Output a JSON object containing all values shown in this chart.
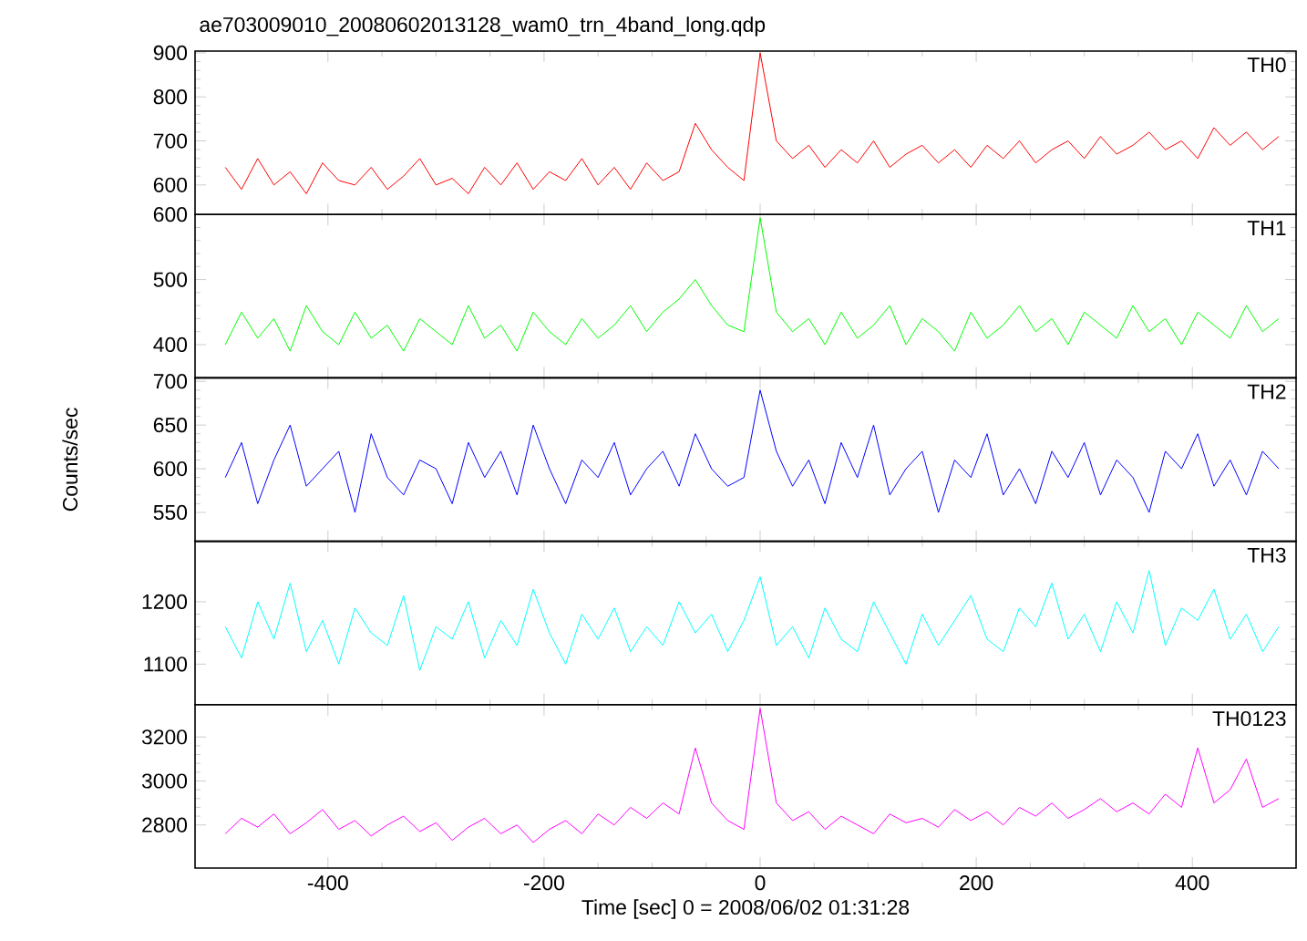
{
  "chart_data": [
    {
      "type": "line",
      "title": "ae703009010_20080602013128_wam0_trn_4band_long.qdp",
      "tick_labels": "y",
      "x": [
        -495,
        -480,
        -465,
        -450,
        -435,
        -420,
        -405,
        -390,
        -375,
        -360,
        -345,
        -330,
        -315,
        -300,
        -285,
        -270,
        -255,
        -240,
        -225,
        -210,
        -195,
        -180,
        -165,
        -150,
        -135,
        -120,
        -105,
        -90,
        -75,
        -60,
        -45,
        -30,
        -15,
        0,
        15,
        30,
        45,
        60,
        75,
        90,
        105,
        120,
        135,
        150,
        165,
        180,
        195,
        210,
        225,
        240,
        255,
        270,
        285,
        300,
        315,
        330,
        345,
        360,
        375,
        390,
        405,
        420,
        435,
        450,
        465,
        480
      ],
      "xlim": [
        -523,
        496
      ],
      "xticks": [
        -400,
        -200,
        0,
        200,
        400
      ],
      "ylim": [
        533,
        904
      ],
      "yticks": [
        600,
        700,
        800,
        900
      ],
      "series": [
        {
          "name": "TH0",
          "color": "#ff0000",
          "values": [
            640,
            590,
            660,
            600,
            630,
            580,
            650,
            610,
            600,
            640,
            590,
            620,
            660,
            600,
            615,
            580,
            640,
            600,
            650,
            590,
            630,
            610,
            660,
            600,
            640,
            590,
            650,
            610,
            630,
            740,
            680,
            640,
            610,
            900,
            700,
            660,
            690,
            640,
            680,
            650,
            700,
            640,
            670,
            690,
            650,
            680,
            640,
            690,
            660,
            700,
            650,
            680,
            700,
            660,
            710,
            670,
            690,
            720,
            680,
            700,
            660,
            730,
            690,
            720,
            680,
            710
          ]
        }
      ]
    },
    {
      "type": "line",
      "tick_labels": "y",
      "x": [
        -495,
        -480,
        -465,
        -450,
        -435,
        -420,
        -405,
        -390,
        -375,
        -360,
        -345,
        -330,
        -315,
        -300,
        -285,
        -270,
        -255,
        -240,
        -225,
        -210,
        -195,
        -180,
        -165,
        -150,
        -135,
        -120,
        -105,
        -90,
        -75,
        -60,
        -45,
        -30,
        -15,
        0,
        15,
        30,
        45,
        60,
        75,
        90,
        105,
        120,
        135,
        150,
        165,
        180,
        195,
        210,
        225,
        240,
        255,
        270,
        285,
        300,
        315,
        330,
        345,
        360,
        375,
        390,
        405,
        420,
        435,
        450,
        465,
        480
      ],
      "xlim": [
        -523,
        496
      ],
      "xticks": [
        -400,
        -200,
        0,
        200,
        400
      ],
      "ylim": [
        349,
        600
      ],
      "yticks": [
        400,
        500,
        600
      ],
      "series": [
        {
          "name": "TH1",
          "color": "#00ff00",
          "values": [
            400,
            450,
            410,
            440,
            390,
            460,
            420,
            400,
            450,
            410,
            430,
            390,
            440,
            420,
            400,
            460,
            410,
            430,
            390,
            450,
            420,
            400,
            440,
            410,
            430,
            460,
            420,
            450,
            470,
            500,
            460,
            430,
            420,
            595,
            450,
            420,
            440,
            400,
            450,
            410,
            430,
            460,
            400,
            440,
            420,
            390,
            450,
            410,
            430,
            460,
            420,
            440,
            400,
            450,
            430,
            410,
            460,
            420,
            440,
            400,
            450,
            430,
            410,
            460,
            420,
            440
          ]
        }
      ]
    },
    {
      "type": "line",
      "tick_labels": "y",
      "ylabel": "Counts/sec",
      "x": [
        -495,
        -480,
        -465,
        -450,
        -435,
        -420,
        -405,
        -390,
        -375,
        -360,
        -345,
        -330,
        -315,
        -300,
        -285,
        -270,
        -255,
        -240,
        -225,
        -210,
        -195,
        -180,
        -165,
        -150,
        -135,
        -120,
        -105,
        -90,
        -75,
        -60,
        -45,
        -30,
        -15,
        0,
        15,
        30,
        45,
        60,
        75,
        90,
        105,
        120,
        135,
        150,
        165,
        180,
        195,
        210,
        225,
        240,
        255,
        270,
        285,
        300,
        315,
        330,
        345,
        360,
        375,
        390,
        405,
        420,
        435,
        450,
        465,
        480
      ],
      "xlim": [
        -523,
        496
      ],
      "xticks": [
        -400,
        -200,
        0,
        200,
        400
      ],
      "ylim": [
        517,
        704
      ],
      "yticks": [
        550,
        600,
        650,
        700
      ],
      "series": [
        {
          "name": "TH2",
          "color": "#0000ff",
          "values": [
            590,
            630,
            560,
            610,
            650,
            580,
            600,
            620,
            550,
            640,
            590,
            570,
            610,
            600,
            560,
            630,
            590,
            620,
            570,
            650,
            600,
            560,
            610,
            590,
            630,
            570,
            600,
            620,
            580,
            640,
            600,
            580,
            590,
            690,
            620,
            580,
            610,
            560,
            630,
            590,
            650,
            570,
            600,
            620,
            550,
            610,
            590,
            640,
            570,
            600,
            560,
            620,
            590,
            630,
            570,
            610,
            590,
            550,
            620,
            600,
            640,
            580,
            610,
            570,
            620,
            600
          ]
        }
      ]
    },
    {
      "type": "line",
      "tick_labels": "y",
      "x": [
        -495,
        -480,
        -465,
        -450,
        -435,
        -420,
        -405,
        -390,
        -375,
        -360,
        -345,
        -330,
        -315,
        -300,
        -285,
        -270,
        -255,
        -240,
        -225,
        -210,
        -195,
        -180,
        -165,
        -150,
        -135,
        -120,
        -105,
        -90,
        -75,
        -60,
        -45,
        -30,
        -15,
        0,
        15,
        30,
        45,
        60,
        75,
        90,
        105,
        120,
        135,
        150,
        165,
        180,
        195,
        210,
        225,
        240,
        255,
        270,
        285,
        300,
        315,
        330,
        345,
        360,
        375,
        390,
        405,
        420,
        435,
        450,
        465,
        480
      ],
      "xlim": [
        -523,
        496
      ],
      "xticks": [
        -400,
        -200,
        0,
        200,
        400
      ],
      "ylim": [
        1035,
        1297
      ],
      "yticks": [
        1100,
        1200
      ],
      "series": [
        {
          "name": "TH3",
          "color": "#00ffff",
          "values": [
            1160,
            1110,
            1200,
            1140,
            1230,
            1120,
            1170,
            1100,
            1190,
            1150,
            1130,
            1210,
            1090,
            1160,
            1140,
            1200,
            1110,
            1170,
            1130,
            1220,
            1150,
            1100,
            1180,
            1140,
            1190,
            1120,
            1160,
            1130,
            1200,
            1150,
            1180,
            1120,
            1170,
            1240,
            1130,
            1160,
            1110,
            1190,
            1140,
            1120,
            1200,
            1150,
            1100,
            1180,
            1130,
            1170,
            1210,
            1140,
            1120,
            1190,
            1160,
            1230,
            1140,
            1180,
            1120,
            1200,
            1150,
            1250,
            1130,
            1190,
            1170,
            1220,
            1140,
            1180,
            1120,
            1160
          ]
        }
      ]
    },
    {
      "type": "line",
      "xlabel": "Time [sec] 0 = 2008/06/02 01:31:28",
      "x": [
        -495,
        -480,
        -465,
        -450,
        -435,
        -420,
        -405,
        -390,
        -375,
        -360,
        -345,
        -330,
        -315,
        -300,
        -285,
        -270,
        -255,
        -240,
        -225,
        -210,
        -195,
        -180,
        -165,
        -150,
        -135,
        -120,
        -105,
        -90,
        -75,
        -60,
        -45,
        -30,
        -15,
        0,
        15,
        30,
        45,
        60,
        75,
        90,
        105,
        120,
        135,
        150,
        165,
        180,
        195,
        210,
        225,
        240,
        255,
        270,
        285,
        300,
        315,
        330,
        345,
        360,
        375,
        390,
        405,
        420,
        435,
        450,
        465,
        480
      ],
      "xlim": [
        -523,
        496
      ],
      "xticks": [
        -400,
        -200,
        0,
        200,
        400
      ],
      "ylim": [
        2604,
        3347
      ],
      "yticks": [
        2800,
        3000,
        3200
      ],
      "series": [
        {
          "name": "TH0123",
          "color": "#ff00ff",
          "values": [
            2760,
            2830,
            2790,
            2850,
            2760,
            2810,
            2870,
            2780,
            2820,
            2750,
            2800,
            2840,
            2770,
            2810,
            2730,
            2790,
            2830,
            2760,
            2800,
            2720,
            2780,
            2820,
            2760,
            2850,
            2800,
            2880,
            2830,
            2900,
            2850,
            3150,
            2900,
            2820,
            2780,
            3330,
            2900,
            2820,
            2860,
            2780,
            2840,
            2800,
            2760,
            2850,
            2810,
            2830,
            2790,
            2870,
            2820,
            2860,
            2800,
            2880,
            2840,
            2900,
            2830,
            2870,
            2920,
            2860,
            2900,
            2850,
            2940,
            2880,
            3150,
            2900,
            2960,
            3100,
            2880,
            2920
          ]
        }
      ]
    }
  ]
}
